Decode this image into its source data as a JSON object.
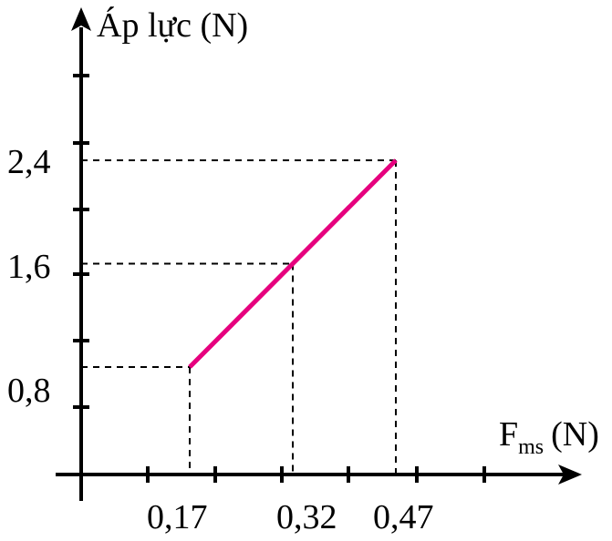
{
  "chart_data": {
    "type": "line",
    "ylabel": "Áp lực (N)",
    "xlabel": {
      "main": "F",
      "subscript": "ms",
      "unit": "(N)"
    },
    "x_tick_labels": [
      "0,17",
      "0,32",
      "0,47"
    ],
    "y_tick_labels": [
      "0,8",
      "1,6",
      "2,4"
    ],
    "series": [
      {
        "x": [
          0.17,
          0.32,
          0.47
        ],
        "y": [
          0.8,
          1.6,
          2.4
        ],
        "color": "#e6007e"
      }
    ],
    "grid": false,
    "guide_lines": "dashed",
    "axis_color": "#000000"
  }
}
